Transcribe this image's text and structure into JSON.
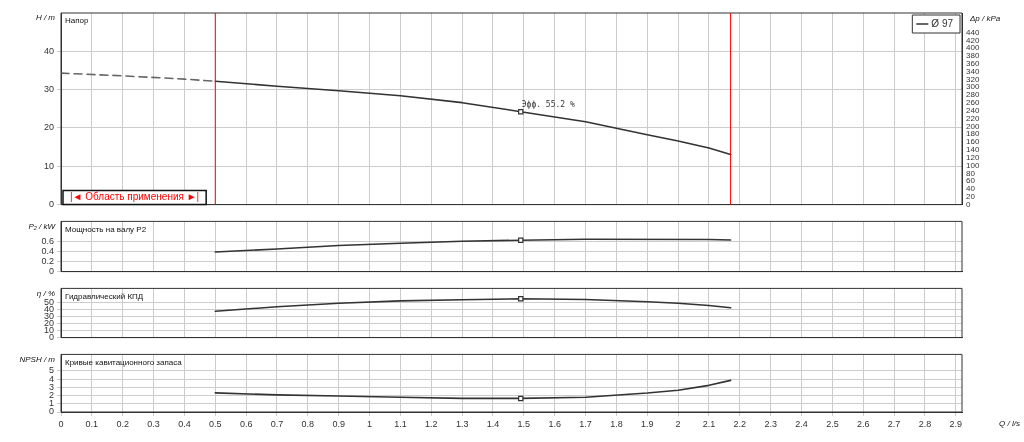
{
  "chart_data": [
    {
      "type": "line",
      "title": "Напор",
      "ylabel": "H / m",
      "y2label": "Δp / kPa",
      "xlim": [
        0,
        2.92
      ],
      "xticks": [
        0,
        0.1,
        0.2,
        0.3,
        0.4,
        0.5,
        0.6,
        0.7,
        0.8,
        0.9,
        1,
        1.1,
        1.2,
        1.3,
        1.4,
        1.5,
        1.6,
        1.7,
        1.8,
        1.9,
        2,
        2.1,
        2.2,
        2.3,
        2.4,
        2.5,
        2.6,
        2.7,
        2.8,
        2.9
      ],
      "ylim": [
        0,
        50
      ],
      "yticks": [
        0,
        10,
        20,
        30,
        40
      ],
      "y2lim": [
        0,
        490
      ],
      "y2ticks": [
        0,
        20,
        40,
        60,
        80,
        100,
        120,
        140,
        160,
        180,
        200,
        220,
        240,
        260,
        280,
        300,
        320,
        340,
        360,
        380,
        400,
        420,
        440
      ],
      "tick_labels": "y",
      "grid": true,
      "legend": "top right",
      "series": [
        {
          "name": "Ø 97",
          "color": "#333333",
          "x": [
            0.5,
            0.7,
            0.9,
            1.1,
            1.3,
            1.49,
            1.7,
            1.9,
            2.0,
            2.1,
            2.17
          ],
          "values": [
            32.2,
            30.9,
            29.7,
            28.4,
            26.6,
            24.25,
            21.6,
            18.25,
            16.6,
            14.75,
            13.1
          ]
        },
        {
          "color": "#666666",
          "line_style": "dashed",
          "x": [
            0,
            0.2,
            0.4,
            0.5
          ],
          "values": [
            34.3,
            33.6,
            32.75,
            32.2
          ]
        },
        {
          "type": "scatter",
          "marker": "square",
          "color": "#333333",
          "x": [
            1.49
          ],
          "values": [
            24.25
          ]
        }
      ],
      "ref_lines": [
        {
          "axis": "x",
          "value": 0.5,
          "color": "#ff0000"
        },
        {
          "axis": "x",
          "value": 2.17,
          "color": "#ff0000"
        }
      ],
      "annotations": [
        {
          "text": "Эфф. 55.2 %",
          "x": 1.49,
          "y": 24.25
        },
        "|◄ Область применения ►|"
      ]
    },
    {
      "type": "line",
      "title": "Мощность на валу P2",
      "ylabel": "P₂ / kW",
      "xlim": [
        0,
        2.92
      ],
      "xticks": [
        0,
        0.1,
        0.2,
        0.3,
        0.4,
        0.5,
        0.6,
        0.7,
        0.8,
        0.9,
        1,
        1.1,
        1.2,
        1.3,
        1.4,
        1.5,
        1.6,
        1.7,
        1.8,
        1.9,
        2,
        2.1,
        2.2,
        2.3,
        2.4,
        2.5,
        2.6,
        2.7,
        2.8,
        2.9
      ],
      "ylim": [
        0,
        1
      ],
      "yticks": [
        0,
        0.2,
        0.4,
        0.6
      ],
      "tick_labels": "y",
      "grid": true,
      "series": [
        {
          "color": "#333333",
          "x": [
            0.5,
            0.7,
            0.9,
            1.1,
            1.3,
            1.49,
            1.7,
            2.1,
            2.17
          ],
          "values": [
            0.39,
            0.45,
            0.52,
            0.565,
            0.605,
            0.625,
            0.645,
            0.64,
            0.63
          ]
        },
        {
          "type": "scatter",
          "marker": "square",
          "color": "#333333",
          "x": [
            1.49
          ],
          "values": [
            0.625
          ]
        }
      ]
    },
    {
      "type": "line",
      "title": "Гидравлический КПД",
      "ylabel": "η / %",
      "xlim": [
        0,
        2.92
      ],
      "xticks": [
        0,
        0.1,
        0.2,
        0.3,
        0.4,
        0.5,
        0.6,
        0.7,
        0.8,
        0.9,
        1,
        1.1,
        1.2,
        1.3,
        1.4,
        1.5,
        1.6,
        1.7,
        1.8,
        1.9,
        2,
        2.1,
        2.2,
        2.3,
        2.4,
        2.5,
        2.6,
        2.7,
        2.8,
        2.9
      ],
      "ylim": [
        0,
        70
      ],
      "yticks": [
        0,
        10,
        20,
        30,
        40,
        50
      ],
      "tick_labels": "y",
      "grid": true,
      "series": [
        {
          "color": "#333333",
          "x": [
            0.5,
            0.7,
            0.9,
            1.1,
            1.3,
            1.49,
            1.7,
            1.9,
            2.0,
            2.1,
            2.17
          ],
          "values": [
            37.4,
            43.9,
            48.9,
            52.2,
            53.9,
            55.2,
            54.3,
            51.0,
            48.9,
            45.7,
            42.4
          ]
        },
        {
          "type": "scatter",
          "marker": "square",
          "color": "#333333",
          "x": [
            1.49
          ],
          "values": [
            55.2
          ]
        }
      ]
    },
    {
      "type": "line",
      "title": "Кривые кавитационного запаса",
      "ylabel": "NPSH / m",
      "xlabel": "Q / l/s",
      "xlim": [
        0,
        2.92
      ],
      "xticks": [
        0,
        0.1,
        0.2,
        0.3,
        0.4,
        0.5,
        0.6,
        0.7,
        0.8,
        0.9,
        1,
        1.1,
        1.2,
        1.3,
        1.4,
        1.5,
        1.6,
        1.7,
        1.8,
        1.9,
        2,
        2.1,
        2.2,
        2.3,
        2.4,
        2.5,
        2.6,
        2.7,
        2.8,
        2.9
      ],
      "ylim": [
        0,
        7
      ],
      "yticks": [
        0,
        1,
        2,
        3,
        4,
        5
      ],
      "grid": true,
      "series": [
        {
          "color": "#333333",
          "x": [
            0.5,
            0.7,
            0.9,
            1.1,
            1.3,
            1.49,
            1.7,
            1.9,
            2.0,
            2.1,
            2.17
          ],
          "values": [
            2.33,
            2.08,
            1.94,
            1.79,
            1.65,
            1.65,
            1.79,
            2.3,
            2.65,
            3.24,
            3.84
          ]
        },
        {
          "type": "scatter",
          "marker": "square",
          "color": "#333333",
          "x": [
            1.49
          ],
          "values": [
            1.65
          ]
        }
      ]
    }
  ]
}
